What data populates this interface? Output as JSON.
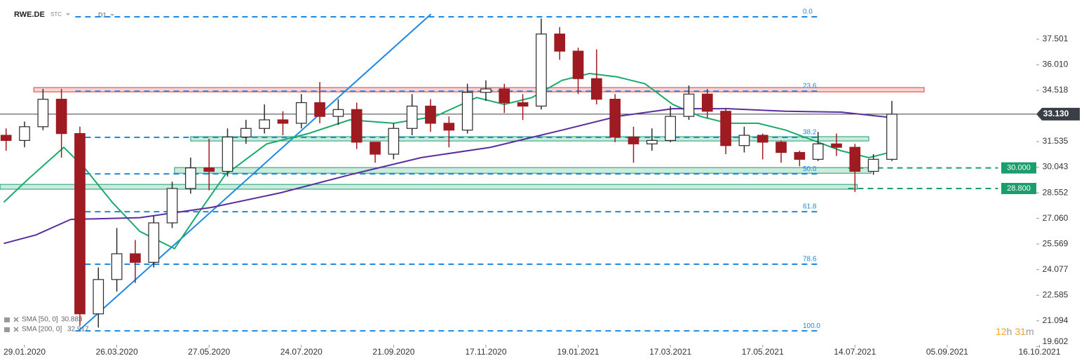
{
  "header": {
    "symbol": "RWE.DE",
    "market": "STC",
    "interval": "D1"
  },
  "chart_data": {
    "type": "candlestick",
    "ylim": [
      19.78,
      39.78
    ],
    "xlim": [
      -10.64,
      459.3
    ],
    "yticks": [
      37.501,
      {
        "value": 36.01,
        "label": "36.010"
      },
      34.518,
      31.535,
      30.043,
      28.552,
      {
        "value": 27.06,
        "label": "27.060"
      },
      25.569,
      24.077,
      22.585,
      21.094,
      19.602
    ],
    "xticks": [
      {
        "value": 0,
        "label": "29.01.2020"
      },
      {
        "value": 40,
        "label": "26.03.2020"
      },
      {
        "value": 80,
        "label": "27.05.2020"
      },
      {
        "value": 120,
        "label": "24.07.2020"
      },
      {
        "value": 160,
        "label": "21.09.2020"
      },
      {
        "value": 200,
        "label": "17.11.2020"
      },
      {
        "value": 240,
        "label": "19.01.2021"
      },
      {
        "value": 280,
        "label": "17.03.2021"
      },
      {
        "value": 320,
        "label": "17.05.2021"
      },
      {
        "value": 360,
        "label": "14.07.2021"
      },
      {
        "value": 400,
        "label": "05.09.2021"
      },
      {
        "value": 440,
        "label": "16.10.2021"
      }
    ],
    "candles": {
      "up_color": "#2b2b2b",
      "down_color": "#9e1b22",
      "x": [
        -8,
        0,
        8,
        16,
        24,
        32,
        40,
        48,
        56,
        64,
        72,
        80,
        88,
        96,
        104,
        112,
        120,
        128,
        136,
        144,
        152,
        160,
        168,
        176,
        184,
        192,
        200,
        208,
        216,
        224,
        232,
        240,
        248,
        256,
        264,
        272,
        280,
        288,
        296,
        304,
        312,
        320,
        328,
        336,
        344,
        352,
        360,
        368,
        376
      ],
      "open": [
        31.9,
        31.6,
        32.4,
        34.0,
        32.0,
        21.5,
        23.5,
        25.0,
        24.5,
        26.8,
        28.8,
        30.0,
        29.8,
        31.8,
        32.3,
        32.8,
        32.6,
        33.8,
        33.0,
        33.4,
        31.5,
        30.8,
        32.3,
        33.6,
        32.6,
        32.2,
        34.4,
        34.6,
        33.8,
        33.6,
        37.8,
        36.8,
        35.2,
        34.0,
        31.8,
        31.4,
        31.6,
        33.0,
        34.3,
        33.3,
        31.3,
        31.9,
        31.5,
        30.9,
        30.5,
        31.4,
        31.2,
        29.8,
        30.5
      ],
      "high": [
        32.3,
        32.7,
        34.6,
        34.6,
        32.4,
        24.2,
        26.5,
        25.8,
        27.2,
        29.2,
        30.6,
        31.7,
        32.3,
        32.8,
        33.7,
        33.3,
        34.3,
        35.0,
        34.0,
        33.8,
        31.4,
        32.6,
        34.3,
        34.0,
        33.0,
        34.9,
        35.1,
        34.9,
        34.3,
        38.7,
        38.2,
        37.0,
        36.9,
        34.3,
        32.4,
        32.3,
        33.6,
        34.8,
        34.6,
        33.5,
        32.4,
        32.0,
        31.6,
        31.0,
        32.1,
        32.0,
        31.4,
        30.8,
        33.9
      ],
      "low": [
        31.0,
        31.2,
        32.2,
        30.6,
        20.8,
        20.7,
        22.8,
        23.3,
        24.2,
        26.5,
        28.5,
        28.7,
        29.5,
        31.4,
        32.0,
        31.9,
        32.3,
        32.6,
        32.5,
        31.1,
        30.3,
        30.5,
        31.9,
        32.1,
        31.2,
        32.0,
        33.9,
        33.2,
        32.8,
        33.4,
        36.3,
        34.3,
        33.7,
        31.5,
        30.3,
        31.0,
        31.5,
        32.8,
        32.9,
        30.8,
        30.9,
        30.5,
        30.3,
        30.1,
        30.4,
        30.7,
        28.6,
        29.6,
        30.4
      ],
      "close": [
        31.6,
        32.4,
        34.0,
        32.0,
        21.5,
        23.5,
        25.0,
        24.5,
        26.8,
        28.8,
        30.0,
        29.8,
        31.8,
        32.3,
        32.8,
        32.6,
        33.8,
        33.0,
        33.4,
        31.5,
        30.8,
        32.3,
        33.6,
        32.6,
        32.2,
        34.4,
        34.6,
        33.8,
        33.6,
        37.8,
        36.8,
        35.2,
        34.0,
        31.8,
        31.4,
        31.6,
        33.0,
        34.3,
        33.3,
        31.3,
        31.9,
        31.5,
        30.9,
        30.5,
        31.4,
        31.2,
        29.8,
        30.5,
        33.13
      ]
    },
    "indicators": [
      {
        "name": "SMA [50, 0]",
        "last": 30.883,
        "color": "#1aab6b",
        "x": [
          -9,
          2,
          17,
          26,
          38,
          50,
          65,
          74,
          87,
          105,
          123,
          141,
          160,
          178,
          196,
          208,
          220,
          233,
          245,
          257,
          269,
          281,
          293,
          305,
          318,
          330,
          342,
          354,
          366,
          378
        ],
        "values": [
          28.0,
          29.4,
          31.2,
          30.0,
          28.0,
          26.3,
          25.3,
          27.1,
          29.6,
          31.4,
          32.0,
          32.8,
          32.6,
          33.0,
          34.1,
          33.7,
          34.1,
          35.1,
          35.5,
          35.3,
          34.9,
          33.7,
          33.0,
          32.6,
          32.6,
          32.2,
          31.6,
          31.0,
          30.6,
          31.0
        ]
      },
      {
        "name": "SMA [200, 0]",
        "last": 32.917,
        "color": "#5b2d9e",
        "x": [
          -9,
          5,
          20,
          50,
          81,
          111,
          141,
          172,
          202,
          233,
          257,
          281,
          305,
          330,
          354,
          378
        ],
        "values": [
          25.6,
          26.1,
          27.0,
          27.1,
          27.7,
          28.55,
          29.6,
          30.6,
          31.2,
          32.2,
          33.0,
          33.45,
          33.45,
          33.3,
          33.25,
          32.9
        ]
      }
    ],
    "fib_color": "#1e88e5",
    "fib_x": [
      22,
      345
    ],
    "fib_levels": [
      {
        "name": "0.0",
        "price": 38.8
      },
      {
        "name": "23.6",
        "price": 34.47
      },
      {
        "name": "38.2",
        "price": 31.78
      },
      {
        "name": "50.0",
        "price": 29.65
      },
      {
        "name": "61.8",
        "price": 27.45
      },
      {
        "name": "78.6",
        "price": 24.39
      },
      {
        "name": "100.0",
        "price": 20.51
      }
    ],
    "zones": [
      {
        "color": "#e53935",
        "x": [
          4,
          390
        ],
        "low": 34.43,
        "high": 34.68
      },
      {
        "color": "#1a9e6b",
        "x": [
          72,
          366
        ],
        "low": 31.57,
        "high": 31.82
      },
      {
        "color": "#1a9e6b",
        "x": [
          65,
          367
        ],
        "low": 29.69,
        "high": 30.02
      },
      {
        "color": "#1a9e6b",
        "x": [
          -10.6,
          361
        ],
        "low": 28.76,
        "high": 29.04
      }
    ],
    "levels": [
      {
        "value": 30,
        "label": "30.000",
        "color": "#1a9e6b",
        "x": [
          357,
          422
        ]
      },
      {
        "value": 28.8,
        "label": "28.800",
        "color": "#1a9e6b",
        "x": [
          357,
          422
        ]
      }
    ],
    "trendline": {
      "color": "#1e88e5",
      "x": [
        23.4,
        176.2
      ],
      "values": [
        20.51,
        38.96
      ]
    },
    "current_price": {
      "value": 33.13,
      "label": "33.130"
    }
  },
  "countdown": [
    "12",
    "h",
    "31",
    "m"
  ]
}
